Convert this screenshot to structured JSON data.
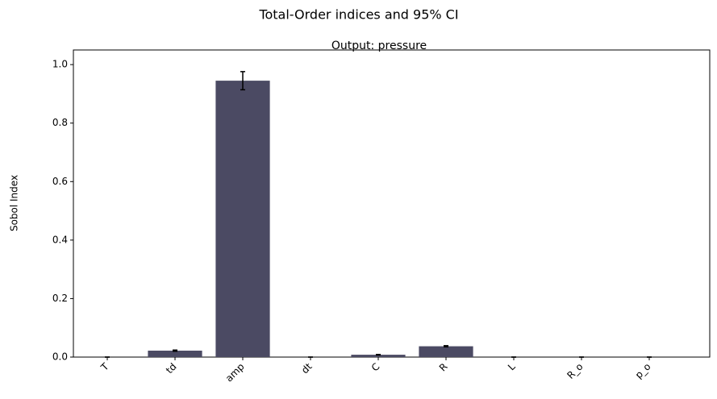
{
  "chart_data": {
    "type": "bar",
    "title": "Total-Order indices and 95% CI",
    "subtitle": "Output: pressure",
    "ylabel": "Sobol Index",
    "categories": [
      "T",
      "td",
      "amp",
      "dt",
      "C",
      "R",
      "L",
      "R_o",
      "p_o"
    ],
    "values": [
      0,
      0.022,
      0.945,
      0,
      0.008,
      0.037,
      0,
      0,
      0
    ],
    "errors": [
      0,
      0.002,
      0.031,
      0,
      0.001,
      0.002,
      0,
      0,
      0
    ],
    "color": "#4b4a63",
    "error_color": "#000000",
    "ylim": [
      0,
      1.05
    ],
    "yticks": [
      {
        "value": 0,
        "label": "0.0"
      },
      0.2,
      0.4,
      0.6,
      0.8,
      {
        "value": 1,
        "label": "1.0"
      }
    ],
    "grid": false
  }
}
